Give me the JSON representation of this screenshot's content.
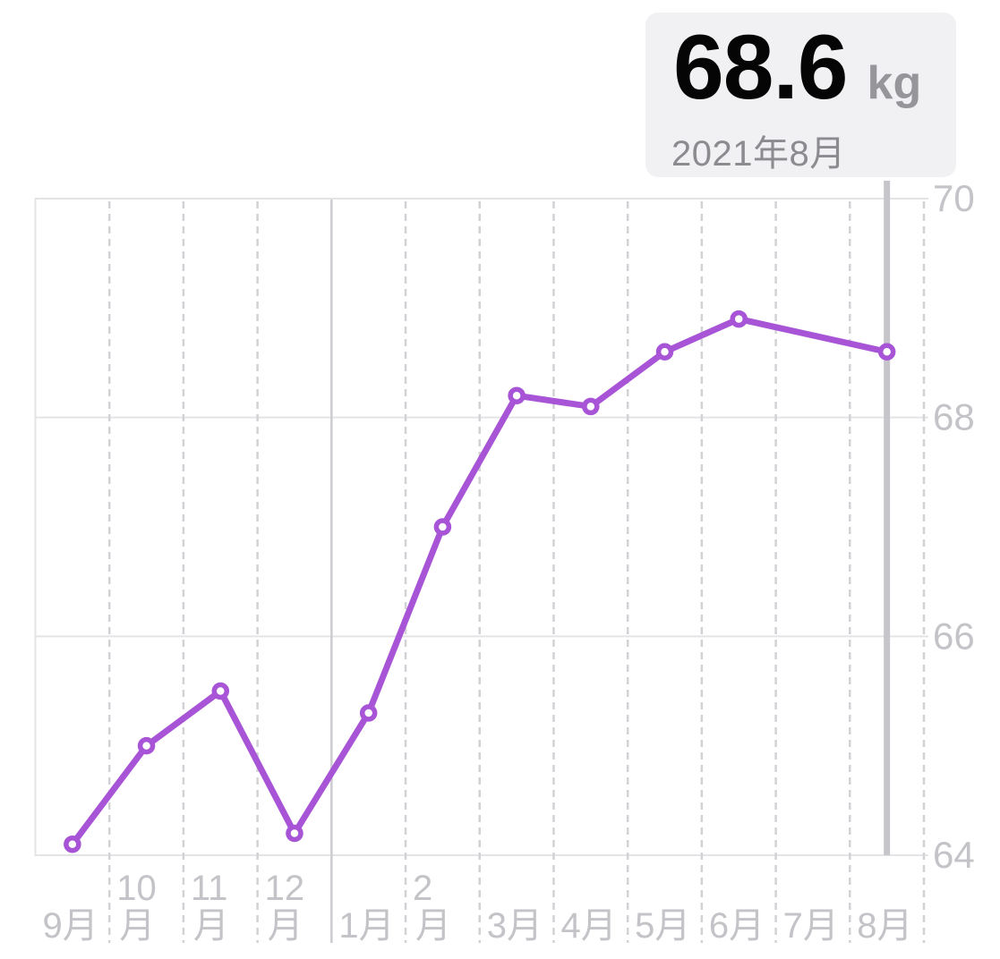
{
  "callout": {
    "value": "68.6",
    "unit": "kg",
    "date": "2021年8月"
  },
  "chart_data": {
    "type": "line",
    "title": "",
    "ylabel": "",
    "xlabel": "",
    "unit": "kg",
    "x_labels": [
      "9月",
      "10月",
      "11月",
      "12月",
      "1月",
      "2月",
      "3月",
      "4月",
      "5月",
      "6月",
      "7月",
      "8月"
    ],
    "x_labels_wrapped": [
      [
        "9月"
      ],
      [
        "10",
        "月"
      ],
      [
        "11",
        "月"
      ],
      [
        "12",
        "月"
      ],
      [
        "1月"
      ],
      [
        "2",
        "月"
      ],
      [
        "3月"
      ],
      [
        "4月"
      ],
      [
        "5月"
      ],
      [
        "6月"
      ],
      [
        "7月"
      ],
      [
        "8月"
      ]
    ],
    "values": [
      64.1,
      65.0,
      65.5,
      64.2,
      65.3,
      67.0,
      68.2,
      68.1,
      68.6,
      68.9,
      null,
      68.6
    ],
    "ylim": [
      64,
      70
    ],
    "yticks": [
      70,
      68,
      66,
      64
    ],
    "ytick_side": "right",
    "grid": true,
    "vertical_grid": "dashed-monthly",
    "year_boundary_index": 4,
    "selected_index": 11,
    "selected_value": 68.6,
    "selected_period": "2021年8月",
    "colors": {
      "line": "#A754D6",
      "marker_fill": "#FFFFFF",
      "solid_grid": "#E4E4E7",
      "dashed_grid": "#D2D2D6",
      "year_line": "#CBCBD0",
      "selection_line": "#C5C5CA",
      "tick_label": "#C3C3C8",
      "callout_bg": "#F1F1F4",
      "callout_value": "#050505",
      "callout_secondary": "#8B8B90"
    }
  }
}
